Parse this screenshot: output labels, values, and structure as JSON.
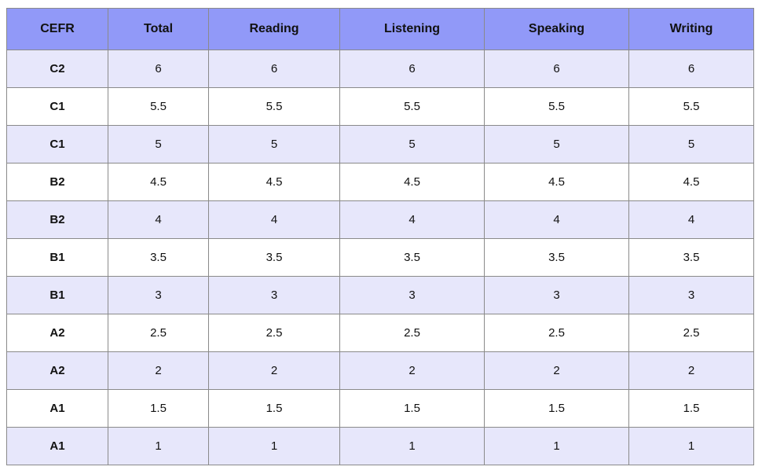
{
  "chart_data": {
    "type": "table",
    "columns": [
      "CEFR",
      "Total",
      "Reading",
      "Listening",
      "Speaking",
      "Writing"
    ],
    "rows": [
      [
        "C2",
        "6",
        "6",
        "6",
        "6",
        "6"
      ],
      [
        "C1",
        "5.5",
        "5.5",
        "5.5",
        "5.5",
        "5.5"
      ],
      [
        "C1",
        "5",
        "5",
        "5",
        "5",
        "5"
      ],
      [
        "B2",
        "4.5",
        "4.5",
        "4.5",
        "4.5",
        "4.5"
      ],
      [
        "B2",
        "4",
        "4",
        "4",
        "4",
        "4"
      ],
      [
        "B1",
        "3.5",
        "3.5",
        "3.5",
        "3.5",
        "3.5"
      ],
      [
        "B1",
        "3",
        "3",
        "3",
        "3",
        "3"
      ],
      [
        "A2",
        "2.5",
        "2.5",
        "2.5",
        "2.5",
        "2.5"
      ],
      [
        "A2",
        "2",
        "2",
        "2",
        "2",
        "2"
      ],
      [
        "A1",
        "1.5",
        "1.5",
        "1.5",
        "1.5",
        "1.5"
      ],
      [
        "A1",
        "1",
        "1",
        "1",
        "1",
        "1"
      ]
    ],
    "layout": {
      "striping": "odd rows lavender, even rows white",
      "header_row": true
    }
  },
  "colors": {
    "header_bg": "#9199f8",
    "row_stripe_bg": "#e7e7fb",
    "row_plain_bg": "#ffffff",
    "border": "#8a8a8a",
    "text": "#111111"
  }
}
